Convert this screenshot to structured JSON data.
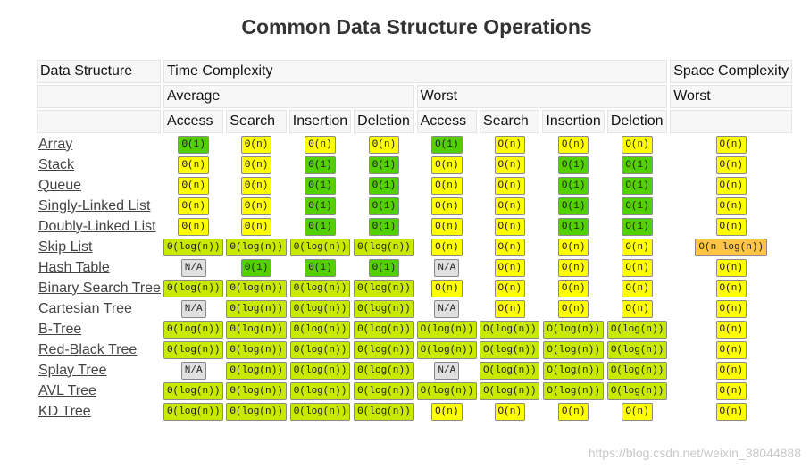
{
  "title": "Common Data Structure Operations",
  "headers": {
    "data_structure": "Data Structure",
    "time_complexity": "Time Complexity",
    "space_complexity": "Space Complexity",
    "average": "Average",
    "worst": "Worst",
    "space_worst": "Worst",
    "ops": [
      "Access",
      "Search",
      "Insertion",
      "Deletion",
      "Access",
      "Search",
      "Insertion",
      "Deletion"
    ]
  },
  "colors": {
    "g": "#53d000",
    "y": "#ffff00",
    "yg": "#c8ea00",
    "o": "#ffc543",
    "na": "#e0e0e0"
  },
  "rows": [
    {
      "name": "Array",
      "cells": [
        [
          "Θ(1)",
          "g"
        ],
        [
          "Θ(n)",
          "y"
        ],
        [
          "Θ(n)",
          "y"
        ],
        [
          "Θ(n)",
          "y"
        ],
        [
          "O(1)",
          "g"
        ],
        [
          "O(n)",
          "y"
        ],
        [
          "O(n)",
          "y"
        ],
        [
          "O(n)",
          "y"
        ],
        [
          "O(n)",
          "y"
        ]
      ]
    },
    {
      "name": "Stack",
      "cells": [
        [
          "Θ(n)",
          "y"
        ],
        [
          "Θ(n)",
          "y"
        ],
        [
          "Θ(1)",
          "g"
        ],
        [
          "Θ(1)",
          "g"
        ],
        [
          "O(n)",
          "y"
        ],
        [
          "O(n)",
          "y"
        ],
        [
          "O(1)",
          "g"
        ],
        [
          "O(1)",
          "g"
        ],
        [
          "O(n)",
          "y"
        ]
      ]
    },
    {
      "name": "Queue",
      "cells": [
        [
          "Θ(n)",
          "y"
        ],
        [
          "Θ(n)",
          "y"
        ],
        [
          "Θ(1)",
          "g"
        ],
        [
          "Θ(1)",
          "g"
        ],
        [
          "O(n)",
          "y"
        ],
        [
          "O(n)",
          "y"
        ],
        [
          "O(1)",
          "g"
        ],
        [
          "O(1)",
          "g"
        ],
        [
          "O(n)",
          "y"
        ]
      ]
    },
    {
      "name": "Singly-Linked List",
      "cells": [
        [
          "Θ(n)",
          "y"
        ],
        [
          "Θ(n)",
          "y"
        ],
        [
          "Θ(1)",
          "g"
        ],
        [
          "Θ(1)",
          "g"
        ],
        [
          "O(n)",
          "y"
        ],
        [
          "O(n)",
          "y"
        ],
        [
          "O(1)",
          "g"
        ],
        [
          "O(1)",
          "g"
        ],
        [
          "O(n)",
          "y"
        ]
      ]
    },
    {
      "name": "Doubly-Linked List",
      "cells": [
        [
          "Θ(n)",
          "y"
        ],
        [
          "Θ(n)",
          "y"
        ],
        [
          "Θ(1)",
          "g"
        ],
        [
          "Θ(1)",
          "g"
        ],
        [
          "O(n)",
          "y"
        ],
        [
          "O(n)",
          "y"
        ],
        [
          "O(1)",
          "g"
        ],
        [
          "O(1)",
          "g"
        ],
        [
          "O(n)",
          "y"
        ]
      ]
    },
    {
      "name": "Skip List",
      "cells": [
        [
          "Θ(log(n))",
          "yg"
        ],
        [
          "Θ(log(n))",
          "yg"
        ],
        [
          "Θ(log(n))",
          "yg"
        ],
        [
          "Θ(log(n))",
          "yg"
        ],
        [
          "O(n)",
          "y"
        ],
        [
          "O(n)",
          "y"
        ],
        [
          "O(n)",
          "y"
        ],
        [
          "O(n)",
          "y"
        ],
        [
          "O(n log(n))",
          "o"
        ]
      ]
    },
    {
      "name": "Hash Table",
      "cells": [
        [
          "N/A",
          "na"
        ],
        [
          "Θ(1)",
          "g"
        ],
        [
          "Θ(1)",
          "g"
        ],
        [
          "Θ(1)",
          "g"
        ],
        [
          "N/A",
          "na"
        ],
        [
          "O(n)",
          "y"
        ],
        [
          "O(n)",
          "y"
        ],
        [
          "O(n)",
          "y"
        ],
        [
          "O(n)",
          "y"
        ]
      ]
    },
    {
      "name": "Binary Search Tree",
      "cells": [
        [
          "Θ(log(n))",
          "yg"
        ],
        [
          "Θ(log(n))",
          "yg"
        ],
        [
          "Θ(log(n))",
          "yg"
        ],
        [
          "Θ(log(n))",
          "yg"
        ],
        [
          "O(n)",
          "y"
        ],
        [
          "O(n)",
          "y"
        ],
        [
          "O(n)",
          "y"
        ],
        [
          "O(n)",
          "y"
        ],
        [
          "O(n)",
          "y"
        ]
      ]
    },
    {
      "name": "Cartesian Tree",
      "cells": [
        [
          "N/A",
          "na"
        ],
        [
          "Θ(log(n))",
          "yg"
        ],
        [
          "Θ(log(n))",
          "yg"
        ],
        [
          "Θ(log(n))",
          "yg"
        ],
        [
          "N/A",
          "na"
        ],
        [
          "O(n)",
          "y"
        ],
        [
          "O(n)",
          "y"
        ],
        [
          "O(n)",
          "y"
        ],
        [
          "O(n)",
          "y"
        ]
      ]
    },
    {
      "name": "B-Tree",
      "cells": [
        [
          "Θ(log(n))",
          "yg"
        ],
        [
          "Θ(log(n))",
          "yg"
        ],
        [
          "Θ(log(n))",
          "yg"
        ],
        [
          "Θ(log(n))",
          "yg"
        ],
        [
          "O(log(n))",
          "yg"
        ],
        [
          "O(log(n))",
          "yg"
        ],
        [
          "O(log(n))",
          "yg"
        ],
        [
          "O(log(n))",
          "yg"
        ],
        [
          "O(n)",
          "y"
        ]
      ]
    },
    {
      "name": "Red-Black Tree",
      "cells": [
        [
          "Θ(log(n))",
          "yg"
        ],
        [
          "Θ(log(n))",
          "yg"
        ],
        [
          "Θ(log(n))",
          "yg"
        ],
        [
          "Θ(log(n))",
          "yg"
        ],
        [
          "O(log(n))",
          "yg"
        ],
        [
          "O(log(n))",
          "yg"
        ],
        [
          "O(log(n))",
          "yg"
        ],
        [
          "O(log(n))",
          "yg"
        ],
        [
          "O(n)",
          "y"
        ]
      ]
    },
    {
      "name": "Splay Tree",
      "cells": [
        [
          "N/A",
          "na"
        ],
        [
          "Θ(log(n))",
          "yg"
        ],
        [
          "Θ(log(n))",
          "yg"
        ],
        [
          "Θ(log(n))",
          "yg"
        ],
        [
          "N/A",
          "na"
        ],
        [
          "O(log(n))",
          "yg"
        ],
        [
          "O(log(n))",
          "yg"
        ],
        [
          "O(log(n))",
          "yg"
        ],
        [
          "O(n)",
          "y"
        ]
      ]
    },
    {
      "name": "AVL Tree",
      "cells": [
        [
          "Θ(log(n))",
          "yg"
        ],
        [
          "Θ(log(n))",
          "yg"
        ],
        [
          "Θ(log(n))",
          "yg"
        ],
        [
          "Θ(log(n))",
          "yg"
        ],
        [
          "O(log(n))",
          "yg"
        ],
        [
          "O(log(n))",
          "yg"
        ],
        [
          "O(log(n))",
          "yg"
        ],
        [
          "O(log(n))",
          "yg"
        ],
        [
          "O(n)",
          "y"
        ]
      ]
    },
    {
      "name": "KD Tree",
      "cells": [
        [
          "Θ(log(n))",
          "yg"
        ],
        [
          "Θ(log(n))",
          "yg"
        ],
        [
          "Θ(log(n))",
          "yg"
        ],
        [
          "Θ(log(n))",
          "yg"
        ],
        [
          "O(n)",
          "y"
        ],
        [
          "O(n)",
          "y"
        ],
        [
          "O(n)",
          "y"
        ],
        [
          "O(n)",
          "y"
        ],
        [
          "O(n)",
          "y"
        ]
      ]
    }
  ],
  "watermark": "https://blog.csdn.net/weixin_38044888"
}
